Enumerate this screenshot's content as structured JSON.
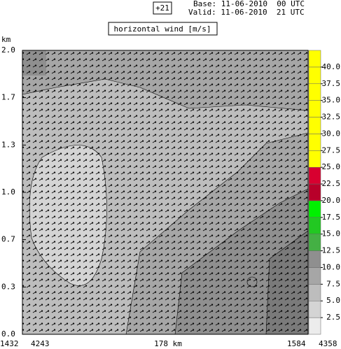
{
  "chart_data": {
    "type": "cross-section",
    "run_label": "+21",
    "base": "Base: 11-06-2010  00 UTC",
    "valid": "Valid: 11-06-2010  21 UTC",
    "title": "horizontal wind [m/s]",
    "ylabel": "km",
    "ylim": [
      0,
      2
    ],
    "yticks": [
      {
        "value": 0,
        "label": "0.0"
      },
      {
        "value": 0.333,
        "label": "0.3"
      },
      {
        "value": 0.667,
        "label": "0.7"
      },
      {
        "value": 1,
        "label": "1.0"
      },
      {
        "value": 1.333,
        "label": "1.3"
      },
      {
        "value": 1.667,
        "label": "1.7"
      },
      {
        "value": 2,
        "label": "2.0"
      }
    ],
    "x_labels": [
      "1432",
      "4243",
      "178 km",
      "1584",
      "4358"
    ],
    "colorbar": {
      "clim": [
        0,
        42.5
      ],
      "colors": [
        "#ececec",
        "#d4d4d4",
        "#bdbdbd",
        "#a6a6a6",
        "#8f8f8f",
        "#44b044",
        "#22c822",
        "#00f000",
        "#b8002a",
        "#d80030",
        "#ffff00",
        "#ffff00",
        "#ffff00",
        "#ffff00",
        "#ffff00",
        "#ffff00",
        "#ffff00"
      ],
      "ticks": [
        2.5,
        {
          "value": 5,
          "label": "5.0"
        },
        7.5,
        {
          "value": 10,
          "label": "10.0"
        },
        12.5,
        {
          "value": 15,
          "label": "15.0"
        },
        17.5,
        {
          "value": 20,
          "label": "20.0"
        },
        22.5,
        {
          "value": 25,
          "label": "25.0"
        },
        27.5,
        {
          "value": 30,
          "label": "30.0"
        },
        32.5,
        {
          "value": 35,
          "label": "35.0"
        },
        37.5,
        {
          "value": 40,
          "label": "40.0"
        }
      ]
    }
  }
}
